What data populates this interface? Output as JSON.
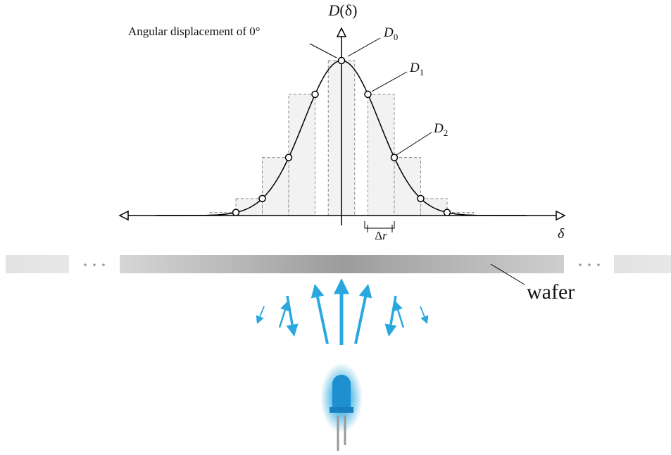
{
  "axes": {
    "y_label": {
      "base": "D",
      "arg": "(δ)"
    },
    "x_label": "δ"
  },
  "annotation": "Angular displacement of 0°",
  "labels": [
    {
      "base": "D",
      "sub": "0"
    },
    {
      "base": "D",
      "sub": "1"
    },
    {
      "base": "D",
      "sub": "2"
    }
  ],
  "bin_width": {
    "base": "Δ",
    "var": "r"
  },
  "wafer": "wafer"
}
